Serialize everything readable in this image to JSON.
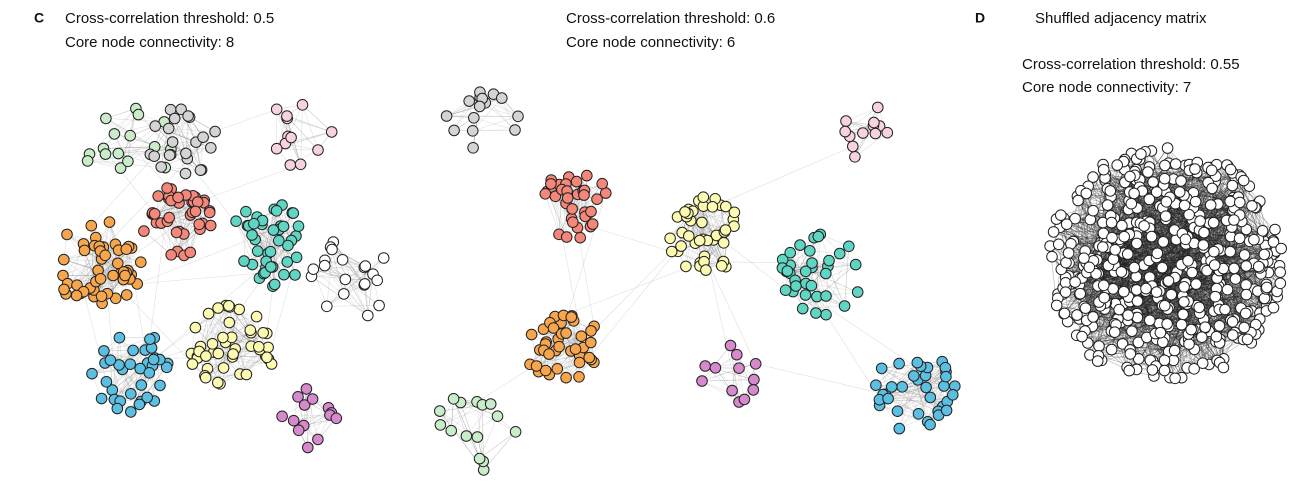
{
  "panels": [
    {
      "label": "C",
      "graphs": [
        {
          "lines": [
            "Cross-correlation threshold: 0.5",
            "Core node connectivity: 8"
          ]
        },
        {
          "lines": [
            "Cross-correlation threshold: 0.6",
            "Core node connectivity: 6"
          ]
        }
      ]
    },
    {
      "label": "D",
      "title": "Shuffled adjacency matrix",
      "graphs": [
        {
          "lines": [
            "Cross-correlation threshold: 0.55",
            "Core node connectivity: 7"
          ]
        }
      ]
    }
  ]
}
